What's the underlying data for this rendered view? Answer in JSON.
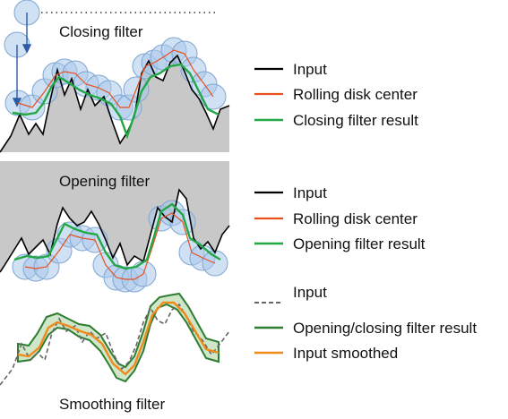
{
  "panels": [
    {
      "id": "closing",
      "title": "Closing filter",
      "legend": [
        {
          "label": "Input",
          "color": "#000000",
          "style": "solid"
        },
        {
          "label": "Rolling disk center",
          "color": "#e8501e",
          "style": "solid"
        },
        {
          "label": "Closing filter result",
          "color": "#22a844",
          "style": "solid"
        }
      ]
    },
    {
      "id": "opening",
      "title": "Opening filter",
      "legend": [
        {
          "label": "Input",
          "color": "#000000",
          "style": "solid"
        },
        {
          "label": "Rolling disk center",
          "color": "#e8501e",
          "style": "solid"
        },
        {
          "label": "Opening filter result",
          "color": "#22a844",
          "style": "solid"
        }
      ]
    },
    {
      "id": "smoothing",
      "title": "Smoothing filter",
      "legend": [
        {
          "label": "Input",
          "color": "#666666",
          "style": "dashed"
        },
        {
          "label": "Opening/closing filter result",
          "color": "#2e7d32",
          "style": "solid"
        },
        {
          "label": "Input smoothed",
          "color": "#f08a1c",
          "style": "solid"
        }
      ]
    }
  ],
  "colors": {
    "fill_gray": "#c8c8c8",
    "disk_fill": "#a9c8ea",
    "disk_stroke": "#7fa6d3",
    "band_fill": "#cfe6c8",
    "arrow": "#2a5ba8"
  }
}
